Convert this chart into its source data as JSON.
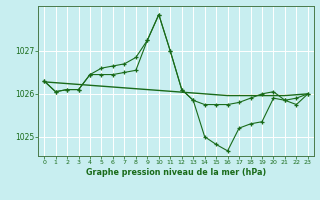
{
  "title": "Graphe pression niveau de la mer (hPa)",
  "background_color": "#c8eef0",
  "grid_color": "#ffffff",
  "line_color": "#1a6b1a",
  "x_labels": [
    "0",
    "1",
    "2",
    "3",
    "4",
    "5",
    "6",
    "7",
    "8",
    "9",
    "10",
    "11",
    "12",
    "13",
    "14",
    "15",
    "16",
    "17",
    "18",
    "19",
    "20",
    "21",
    "22",
    "23"
  ],
  "series1": [
    1026.3,
    1026.05,
    1026.1,
    1026.1,
    1026.45,
    1026.45,
    1026.45,
    1026.5,
    1026.55,
    1027.25,
    1027.85,
    1027.0,
    1026.1,
    1025.85,
    1025.75,
    1025.75,
    1025.75,
    1025.8,
    1025.9,
    1026.0,
    1026.05,
    1025.85,
    1025.9,
    1026.0
  ],
  "series2": [
    1026.3,
    1026.05,
    1026.1,
    1026.1,
    1026.45,
    1026.6,
    1026.65,
    1026.7,
    1026.85,
    1027.25,
    1027.85,
    1027.0,
    1026.1,
    1025.85,
    1025.0,
    1024.82,
    1024.67,
    1025.2,
    1025.3,
    1025.35,
    1025.9,
    1025.85,
    1025.75,
    1026.0
  ],
  "series_flat": [
    1026.28,
    1026.26,
    1026.24,
    1026.22,
    1026.2,
    1026.18,
    1026.16,
    1026.14,
    1026.12,
    1026.1,
    1026.08,
    1026.06,
    1026.04,
    1026.02,
    1026.0,
    1025.98,
    1025.96,
    1025.96,
    1025.96,
    1025.96,
    1025.96,
    1025.96,
    1025.98,
    1026.0
  ],
  "ylim": [
    1024.55,
    1028.05
  ],
  "yticks": [
    1025,
    1026,
    1027
  ],
  "figsize": [
    3.2,
    2.0
  ],
  "dpi": 100
}
